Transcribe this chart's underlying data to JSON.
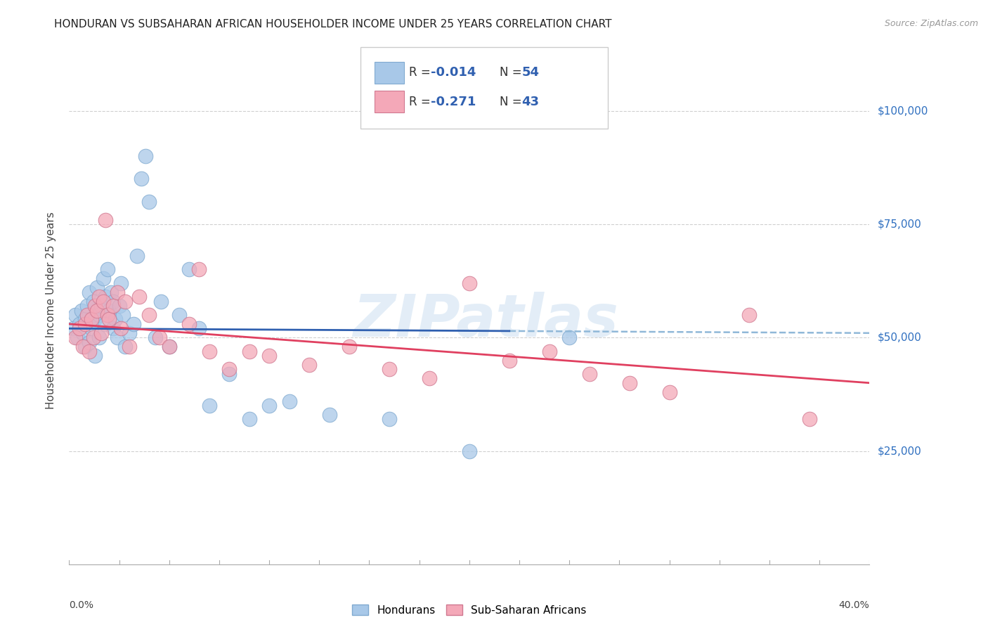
{
  "title": "HONDURAN VS SUBSAHARAN AFRICAN HOUSEHOLDER INCOME UNDER 25 YEARS CORRELATION CHART",
  "source": "Source: ZipAtlas.com",
  "ylabel": "Householder Income Under 25 years",
  "r_blue": "-0.014",
  "n_blue": "54",
  "r_pink": "-0.271",
  "n_pink": "43",
  "xmin": 0.0,
  "xmax": 0.4,
  "ymin": 0,
  "ymax": 112000,
  "yticks": [
    0,
    25000,
    50000,
    75000,
    100000
  ],
  "ytick_labels": [
    "",
    "$25,000",
    "$50,000",
    "$75,000",
    "$100,000"
  ],
  "background_color": "#ffffff",
  "grid_color": "#d0d0d0",
  "blue_scatter_color": "#a8c8e8",
  "pink_scatter_color": "#f4a8b8",
  "blue_line_color": "#3060b0",
  "pink_line_color": "#e04060",
  "dashed_line_color": "#90b8d8",
  "watermark": "ZIPatlas",
  "blue_dots_x": [
    0.002,
    0.003,
    0.004,
    0.005,
    0.006,
    0.007,
    0.008,
    0.008,
    0.009,
    0.01,
    0.01,
    0.011,
    0.012,
    0.013,
    0.013,
    0.014,
    0.015,
    0.015,
    0.016,
    0.017,
    0.018,
    0.018,
    0.019,
    0.02,
    0.021,
    0.022,
    0.022,
    0.023,
    0.024,
    0.025,
    0.026,
    0.027,
    0.028,
    0.03,
    0.032,
    0.034,
    0.036,
    0.038,
    0.04,
    0.043,
    0.046,
    0.05,
    0.055,
    0.06,
    0.065,
    0.07,
    0.08,
    0.09,
    0.1,
    0.11,
    0.13,
    0.16,
    0.2,
    0.25
  ],
  "blue_dots_y": [
    52000,
    55000,
    50000,
    53000,
    56000,
    51000,
    54000,
    48000,
    57000,
    60000,
    49000,
    52000,
    58000,
    46000,
    54000,
    61000,
    55000,
    50000,
    57000,
    63000,
    59000,
    53000,
    65000,
    56000,
    60000,
    52000,
    58000,
    54000,
    50000,
    57000,
    62000,
    55000,
    48000,
    51000,
    53000,
    68000,
    85000,
    90000,
    80000,
    50000,
    58000,
    48000,
    55000,
    65000,
    52000,
    35000,
    42000,
    32000,
    35000,
    36000,
    33000,
    32000,
    25000,
    50000
  ],
  "pink_dots_x": [
    0.003,
    0.005,
    0.007,
    0.008,
    0.009,
    0.01,
    0.011,
    0.012,
    0.013,
    0.014,
    0.015,
    0.016,
    0.017,
    0.018,
    0.019,
    0.02,
    0.022,
    0.024,
    0.026,
    0.028,
    0.03,
    0.035,
    0.04,
    0.045,
    0.05,
    0.06,
    0.065,
    0.07,
    0.08,
    0.09,
    0.1,
    0.12,
    0.14,
    0.16,
    0.18,
    0.2,
    0.22,
    0.24,
    0.26,
    0.28,
    0.3,
    0.34,
    0.37
  ],
  "pink_dots_y": [
    50000,
    52000,
    48000,
    53000,
    55000,
    47000,
    54000,
    50000,
    57000,
    56000,
    59000,
    51000,
    58000,
    76000,
    55000,
    54000,
    57000,
    60000,
    52000,
    58000,
    48000,
    59000,
    55000,
    50000,
    48000,
    53000,
    65000,
    47000,
    43000,
    47000,
    46000,
    44000,
    48000,
    43000,
    41000,
    62000,
    45000,
    47000,
    42000,
    40000,
    38000,
    55000,
    32000
  ]
}
